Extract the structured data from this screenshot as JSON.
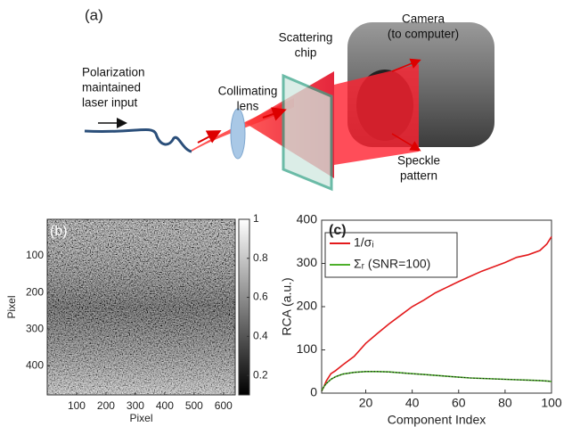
{
  "diagram": {
    "panel_label": "(a)",
    "labels": [
      {
        "lines": [
          "Polarization",
          "maintained",
          "laser input"
        ]
      },
      {
        "lines": [
          "Collimating",
          "lens"
        ]
      },
      {
        "lines": [
          "Scattering",
          "chip"
        ]
      },
      {
        "lines": [
          "Camera",
          "(to computer)"
        ]
      },
      {
        "lines": [
          "Speckle",
          "pattern"
        ]
      }
    ]
  },
  "chart_data": [
    {
      "type": "image",
      "panel_label": "(b)",
      "xlabel": "Pixel",
      "ylabel": "Pixel",
      "xlim": [
        0,
        640
      ],
      "ylim": [
        0,
        480
      ],
      "xticks": [
        100,
        200,
        300,
        400,
        500,
        600
      ],
      "yticks": [
        100,
        200,
        300,
        400
      ],
      "colormap": "gray",
      "clim": [
        0.1,
        1
      ],
      "cticks": [
        0.2,
        0.4,
        0.6,
        0.8,
        1
      ]
    },
    {
      "type": "line",
      "panel_label": "(c)",
      "xlabel": "Component Index",
      "ylabel": "RCA (a.u.)",
      "xlim": [
        1,
        100
      ],
      "ylim": [
        0,
        400
      ],
      "xticks": [
        20,
        40,
        60,
        80,
        100
      ],
      "yticks": [
        0,
        100,
        200,
        300,
        400
      ],
      "legend": "upper left",
      "x": [
        1,
        2,
        3,
        5,
        7,
        10,
        15,
        20,
        25,
        30,
        35,
        40,
        45,
        50,
        55,
        60,
        65,
        70,
        75,
        80,
        85,
        90,
        95,
        98,
        100
      ],
      "series": [
        {
          "name": "1/σᵢ",
          "color": "#e31a1c",
          "values": [
            5,
            15,
            28,
            45,
            52,
            65,
            85,
            115,
            138,
            160,
            180,
            200,
            215,
            232,
            245,
            258,
            270,
            282,
            292,
            302,
            314,
            320,
            330,
            345,
            362
          ]
        },
        {
          "name": "Σᵣ (SNR=100)",
          "color": "#4daf2a",
          "values": [
            5,
            15,
            22,
            32,
            38,
            44,
            48,
            50,
            50,
            49,
            47,
            45,
            43,
            41,
            39,
            37,
            35,
            34,
            33,
            32,
            31,
            30,
            29,
            28,
            27
          ]
        }
      ]
    }
  ]
}
